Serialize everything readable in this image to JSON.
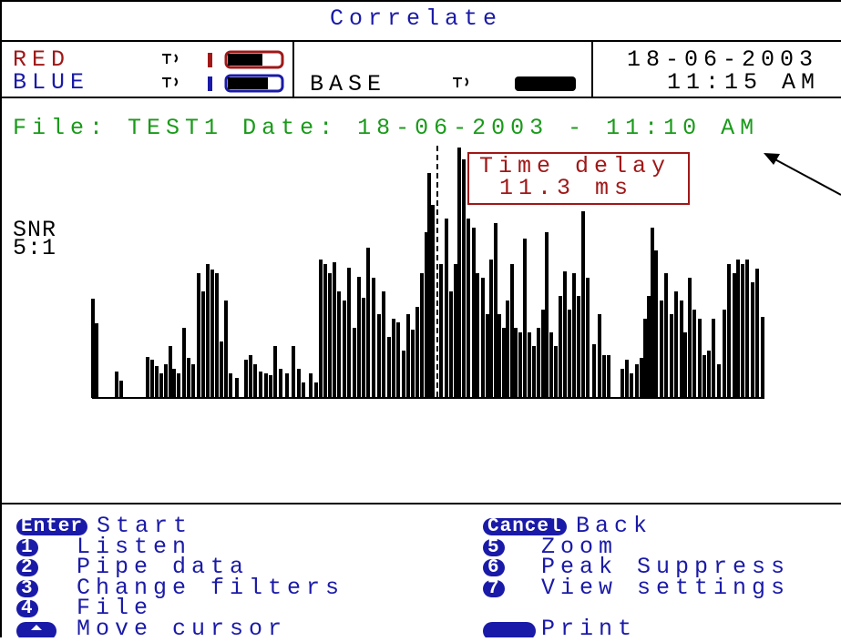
{
  "header": {
    "title": "Correlate",
    "sensor_red": "RED",
    "sensor_blue": "BLUE",
    "base": "BASE",
    "date": "18-06-2003",
    "time": "11:15 AM"
  },
  "file_line": {
    "file_label": "File:",
    "file_name": "TEST1",
    "date_label": "Date:",
    "date_value": "18-06-2003 - 11:10 AM"
  },
  "graph": {
    "time_delay_label": "Time delay",
    "time_delay_value": "11.3 ms",
    "snr_label": "SNR",
    "snr_value": "5:1"
  },
  "menu": {
    "left": [
      {
        "key": "Enter",
        "label": "Start"
      },
      {
        "key": "1",
        "label": "Listen"
      },
      {
        "key": "2",
        "label": "Pipe data"
      },
      {
        "key": "3",
        "label": "Change filters"
      },
      {
        "key": "4",
        "label": "File"
      },
      {
        "label": "Move cursor"
      }
    ],
    "right": [
      {
        "key": "Cancel",
        "label": "Back"
      },
      {
        "key": "5",
        "label": "Zoom"
      },
      {
        "key": "6",
        "label": "Peak Suppress"
      },
      {
        "key": "7",
        "label": "View settings"
      },
      {
        "label": "Print"
      }
    ]
  }
}
